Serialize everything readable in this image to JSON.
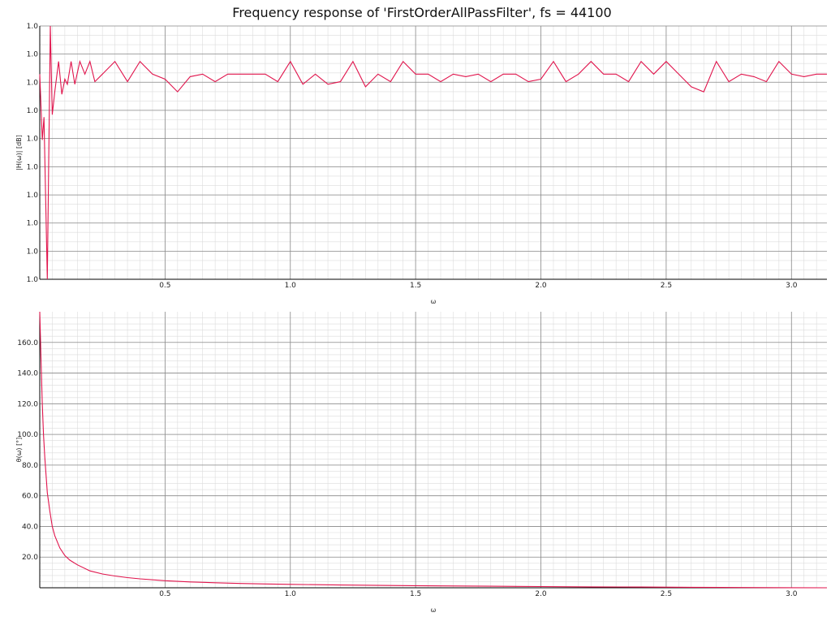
{
  "title": "Frequency response of 'FirstOrderAllPassFilter', fs = 44100",
  "colors": {
    "series": "#e0144c",
    "grid_major": "#8a8a8a",
    "grid_minor": "#dcdcdc",
    "axis": "#000000"
  },
  "chart_data": [
    {
      "type": "line",
      "name": "magnitude",
      "xlabel": "ω",
      "ylabel": "|H(ω)| [dB]",
      "xlim": [
        0,
        3.1416
      ],
      "ylim": [
        0,
        1
      ],
      "x_ticks": [
        0.5,
        1.0,
        1.5,
        2.0,
        2.5,
        3.0
      ],
      "x_tick_labels": [
        "0.5",
        "1.0",
        "1.5",
        "2.0",
        "2.5",
        "3.0"
      ],
      "y_tick_labels": [
        "1.0",
        "1.0",
        "1.0",
        "1.0",
        "1.0",
        "1.0",
        "1.0",
        "1.0",
        "1.0",
        "1.0"
      ],
      "y_ticks": [
        0.0,
        0.111,
        0.222,
        0.333,
        0.444,
        0.556,
        0.667,
        0.778,
        0.889,
        1.0
      ],
      "grid": true,
      "x": [
        0.0,
        0.01,
        0.017,
        0.03,
        0.042,
        0.05,
        0.06,
        0.075,
        0.088,
        0.1,
        0.11,
        0.125,
        0.14,
        0.16,
        0.18,
        0.2,
        0.22,
        0.25,
        0.3,
        0.35,
        0.4,
        0.45,
        0.5,
        0.55,
        0.6,
        0.65,
        0.7,
        0.75,
        0.8,
        0.85,
        0.9,
        0.95,
        1.0,
        1.05,
        1.1,
        1.15,
        1.2,
        1.25,
        1.3,
        1.35,
        1.4,
        1.45,
        1.5,
        1.55,
        1.6,
        1.65,
        1.7,
        1.75,
        1.8,
        1.85,
        1.9,
        1.95,
        2.0,
        2.05,
        2.1,
        2.15,
        2.2,
        2.25,
        2.3,
        2.35,
        2.4,
        2.45,
        2.5,
        2.55,
        2.6,
        2.65,
        2.7,
        2.75,
        2.8,
        2.85,
        2.9,
        2.95,
        3.0,
        3.05,
        3.1,
        3.1416
      ],
      "y": [
        0.81,
        0.55,
        0.64,
        0.0,
        1.0,
        0.65,
        0.74,
        0.86,
        0.73,
        0.79,
        0.77,
        0.86,
        0.77,
        0.86,
        0.81,
        0.86,
        0.78,
        0.81,
        0.86,
        0.78,
        0.86,
        0.81,
        0.79,
        0.74,
        0.8,
        0.81,
        0.78,
        0.81,
        0.81,
        0.81,
        0.81,
        0.78,
        0.86,
        0.77,
        0.81,
        0.77,
        0.78,
        0.86,
        0.76,
        0.81,
        0.78,
        0.86,
        0.81,
        0.81,
        0.78,
        0.81,
        0.8,
        0.81,
        0.78,
        0.81,
        0.81,
        0.78,
        0.79,
        0.86,
        0.78,
        0.81,
        0.86,
        0.81,
        0.81,
        0.78,
        0.86,
        0.81,
        0.86,
        0.81,
        0.76,
        0.74,
        0.86,
        0.78,
        0.81,
        0.8,
        0.78,
        0.86,
        0.81,
        0.8,
        0.81,
        0.81
      ]
    },
    {
      "type": "line",
      "name": "phase",
      "xlabel": "ω",
      "ylabel": "θ(ω) [°]",
      "xlim": [
        0,
        3.1416
      ],
      "ylim": [
        0,
        180
      ],
      "x_ticks": [
        0.5,
        1.0,
        1.5,
        2.0,
        2.5,
        3.0
      ],
      "x_tick_labels": [
        "0.5",
        "1.0",
        "1.5",
        "2.0",
        "2.5",
        "3.0"
      ],
      "y_ticks": [
        20,
        40,
        60,
        80,
        100,
        120,
        140,
        160
      ],
      "y_tick_labels": [
        "20.0",
        "40.0",
        "60.0",
        "80.0",
        "100.0",
        "120.0",
        "140.0",
        "160.0"
      ],
      "grid": true,
      "x": [
        0.0,
        0.005,
        0.01,
        0.015,
        0.02,
        0.03,
        0.04,
        0.05,
        0.06,
        0.08,
        0.1,
        0.12,
        0.15,
        0.2,
        0.25,
        0.3,
        0.35,
        0.4,
        0.5,
        0.6,
        0.7,
        0.8,
        0.9,
        1.0,
        1.2,
        1.4,
        1.6,
        1.8,
        2.0,
        2.2,
        2.4,
        2.6,
        2.8,
        3.0,
        3.1416
      ],
      "y": [
        180,
        150,
        120,
        100,
        85,
        62,
        50,
        40,
        34,
        26,
        21,
        18,
        15,
        11,
        9,
        7.7,
        6.6,
        5.8,
        4.6,
        3.8,
        3.3,
        2.8,
        2.5,
        2.2,
        1.8,
        1.5,
        1.2,
        1.0,
        0.8,
        0.6,
        0.45,
        0.3,
        0.18,
        0.06,
        0.0
      ]
    }
  ]
}
